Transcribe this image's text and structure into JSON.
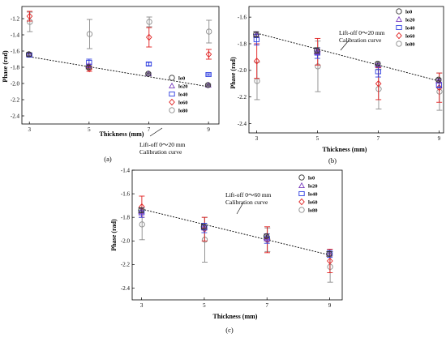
{
  "series_names": [
    "lo0",
    "lo20",
    "lo40",
    "lo60",
    "lo80"
  ],
  "series_colors": [
    "#333333",
    "#7b3fbf",
    "#2f3fe0",
    "#e02020",
    "#8a8a8a"
  ],
  "series_markers": [
    "circle",
    "triangle",
    "square",
    "diamond",
    "circle"
  ],
  "chart_data": [
    {
      "type": "scatter",
      "caption": "(a)",
      "xlabel": "Thickness (mm)",
      "ylabel": "Phase (rad)",
      "x": [
        3,
        5,
        7,
        9
      ],
      "xticks": [
        "3",
        "5",
        "7",
        "9"
      ],
      "xlim": [
        2.75,
        9.35
      ],
      "ylim": [
        -2.5,
        -1.05
      ],
      "yticks": [
        -1.2,
        -1.4,
        -1.6,
        -1.8,
        -2.0,
        -2.2,
        -2.4
      ],
      "ytick_labels": [
        "-1.2",
        "-1.4",
        "-1.6",
        "-1.8",
        "-2.0",
        "-2.2",
        "-2.4"
      ],
      "legend_position": "lower-right",
      "annotation": [
        "Lift-off 0～20 mm",
        "Calibration curve"
      ],
      "fit_line": [
        [
          3,
          -1.67
        ],
        [
          9,
          -2.04
        ]
      ],
      "series": [
        {
          "name": "lo0",
          "y": [
            -1.64,
            -1.8,
            -1.88,
            -2.02
          ],
          "err": [
            0.02,
            0.02,
            0.01,
            0.01
          ]
        },
        {
          "name": "lo20",
          "y": [
            -1.64,
            -1.78,
            -1.88,
            -2.02
          ],
          "err": [
            0.02,
            0.02,
            0.01,
            0.01
          ]
        },
        {
          "name": "lo40",
          "y": [
            -1.65,
            -1.74,
            -1.76,
            -1.89
          ],
          "err": [
            0.02,
            0.04,
            0.02,
            0.01
          ]
        },
        {
          "name": "lo60",
          "y": [
            -1.17,
            -1.82,
            -1.43,
            -1.64
          ],
          "err": [
            0.06,
            0.03,
            0.12,
            0.06
          ]
        },
        {
          "name": "lo80",
          "y": [
            -1.24,
            -1.39,
            -1.24,
            -1.36
          ],
          "err": [
            0.12,
            0.18,
            0.06,
            0.14
          ]
        }
      ]
    },
    {
      "type": "scatter",
      "caption": "(b)",
      "xlabel": "Thickness (mm)",
      "ylabel": "Phase (rad)",
      "x": [
        3,
        5,
        7,
        9
      ],
      "xticks": [
        "3",
        "5",
        "7",
        "9"
      ],
      "xlim": [
        2.75,
        9.15
      ],
      "ylim": [
        -2.47,
        -1.52
      ],
      "yticks": [
        -1.6,
        -1.8,
        -2.0,
        -2.2,
        -2.4
      ],
      "ytick_labels": [
        "-1.6",
        "-1.8",
        "-2.0",
        "-2.2",
        "-2.4"
      ],
      "legend_position": "top-right",
      "annotation": [
        "Lift-off 0～20 mm",
        "Calibration curve"
      ],
      "fit_line": [
        [
          3,
          -1.72
        ],
        [
          9,
          -2.08
        ]
      ],
      "series": [
        {
          "name": "lo0",
          "y": [
            -1.73,
            -1.85,
            -1.95,
            -2.07
          ],
          "err": [
            0.02,
            0.02,
            0.01,
            0.01
          ]
        },
        {
          "name": "lo20",
          "y": [
            -1.73,
            -1.86,
            -1.96,
            -2.08
          ],
          "err": [
            0.02,
            0.02,
            0.01,
            0.01
          ]
        },
        {
          "name": "lo40",
          "y": [
            -1.77,
            -1.87,
            -2.01,
            -2.11
          ],
          "err": [
            0.04,
            0.04,
            0.04,
            0.02
          ]
        },
        {
          "name": "lo60",
          "y": [
            -1.93,
            -1.86,
            -2.1,
            -2.13
          ],
          "err": [
            0.13,
            0.1,
            0.12,
            0.11
          ]
        },
        {
          "name": "lo80",
          "y": [
            -2.08,
            -1.97,
            -2.14,
            -2.16
          ],
          "err": [
            0.14,
            0.19,
            0.15,
            0.14
          ]
        }
      ]
    },
    {
      "type": "scatter",
      "caption": "(c)",
      "xlabel": "Thickness (mm)",
      "ylabel": "Phase (rad)",
      "x": [
        3,
        5,
        7,
        9
      ],
      "xticks": [
        "3",
        "5",
        "7",
        "9"
      ],
      "xlim": [
        2.7,
        9.4
      ],
      "ylim": [
        -2.5,
        -1.4
      ],
      "yticks": [
        -1.4,
        -1.6,
        -1.8,
        -2.0,
        -2.2,
        -2.4
      ],
      "ytick_labels": [
        "-1.4",
        "-1.6",
        "-1.8",
        "-2.0",
        "-2.2",
        "-2.4"
      ],
      "legend_position": "top-right",
      "annotation": [
        "Lift-off 0～60 mm",
        "Calibration curve"
      ],
      "fit_line": [
        [
          3,
          -1.73
        ],
        [
          9,
          -2.12
        ]
      ],
      "series": [
        {
          "name": "lo0",
          "y": [
            -1.74,
            -1.88,
            -1.96,
            -2.11
          ],
          "err": [
            0.02,
            0.02,
            0.01,
            0.02
          ]
        },
        {
          "name": "lo20",
          "y": [
            -1.75,
            -1.88,
            -1.97,
            -2.11
          ],
          "err": [
            0.03,
            0.02,
            0.03,
            0.02
          ]
        },
        {
          "name": "lo40",
          "y": [
            -1.76,
            -1.89,
            -1.98,
            -2.11
          ],
          "err": [
            0.04,
            0.04,
            0.04,
            0.03
          ]
        },
        {
          "name": "lo60",
          "y": [
            -1.71,
            -1.9,
            -1.99,
            -2.17
          ],
          "err": [
            0.09,
            0.1,
            0.11,
            0.1
          ]
        },
        {
          "name": "lo80",
          "y": [
            -1.86,
            -1.99,
            -1.99,
            -2.22
          ],
          "err": [
            0.13,
            0.19,
            0.1,
            0.13
          ]
        }
      ]
    }
  ]
}
